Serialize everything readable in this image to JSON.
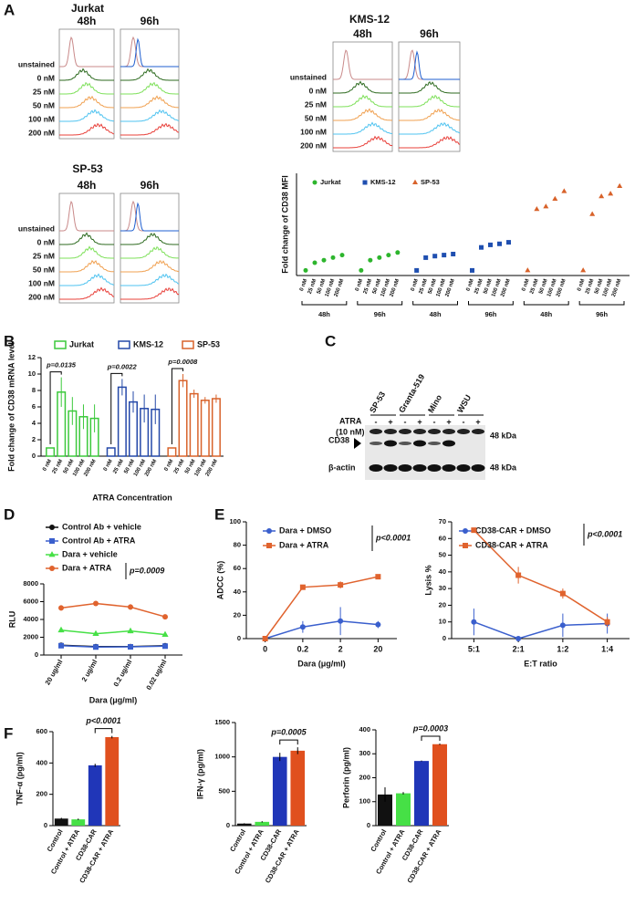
{
  "chart_data": [
    {
      "type": "flow",
      "panel": "A",
      "row_labels": [
        "unstained",
        "0 nM",
        "25 nM",
        "50 nM",
        "100 nM",
        "200 nM"
      ],
      "row_colors": [
        "#c98a8a",
        "#2d6a1f",
        "#7ee05a",
        "#f0a050",
        "#4fc3f0",
        "#e8403a"
      ],
      "blocks": [
        {
          "title": "Jurkat",
          "timepoints": [
            "48h",
            "96h"
          ]
        },
        {
          "title": "KMS-12",
          "timepoints": [
            "48h",
            "96h"
          ]
        },
        {
          "title": "SP-53",
          "timepoints": [
            "48h",
            "96h"
          ]
        }
      ]
    },
    {
      "type": "dot",
      "ylabel": "Fold change of CD38 MFI",
      "dose_labels": [
        "0 nM",
        "25 nM",
        "50 nM",
        "100 nM",
        "200 nM"
      ],
      "ylim": [
        0,
        20
      ],
      "series": [
        {
          "name": "Jurkat",
          "color": "#2db52d",
          "marker": "circle",
          "groups": [
            {
              "name": "48h",
              "values": [
                1,
                2.5,
                3,
                3.5,
                4
              ]
            },
            {
              "name": "96h",
              "values": [
                1,
                3,
                3.5,
                4,
                4.5
              ]
            }
          ]
        },
        {
          "name": "KMS-12",
          "color": "#1f4fb0",
          "marker": "square",
          "groups": [
            {
              "name": "48h",
              "values": [
                1,
                3.5,
                3.8,
                4,
                4.2
              ]
            },
            {
              "name": "96h",
              "values": [
                1,
                5.5,
                6,
                6.2,
                6.5
              ]
            }
          ]
        },
        {
          "name": "SP-53",
          "color": "#d8622a",
          "marker": "triangle",
          "groups": [
            {
              "name": "48h",
              "values": [
                1,
                13,
                13.5,
                15,
                16.5
              ]
            },
            {
              "name": "96h",
              "values": [
                1,
                12,
                15.5,
                16,
                17.5
              ]
            }
          ]
        }
      ]
    },
    {
      "type": "bar_groups",
      "panel": "B",
      "ylabel": "Fold change of CD38 mRNA level",
      "xlabel": "ATRA Concentration",
      "ylim": [
        0,
        12
      ],
      "yticks": [
        0,
        2,
        4,
        6,
        8,
        10,
        12
      ],
      "categories": [
        "0 nM",
        "25 nM",
        "50 nM",
        "100 nM",
        "200 nM"
      ],
      "series": [
        {
          "name": "Jurkat",
          "color": "#3cc93c",
          "values": [
            1,
            7.8,
            5.5,
            4.8,
            4.6
          ],
          "errors": [
            0.05,
            1.8,
            1.7,
            1.5,
            1.7
          ],
          "p_label": "p=0.0135"
        },
        {
          "name": "KMS-12",
          "color": "#2448a8",
          "values": [
            1,
            8.4,
            6.6,
            5.8,
            5.7
          ],
          "errors": [
            0.05,
            1,
            1.3,
            1.7,
            1.8
          ],
          "p_label": "p=0.0022"
        },
        {
          "name": "SP-53",
          "color": "#d8622a",
          "values": [
            1,
            9.2,
            7.6,
            6.8,
            7
          ],
          "errors": [
            0.05,
            0.8,
            0.5,
            0.4,
            0.5
          ],
          "p_label": "p=0.0008"
        }
      ]
    },
    {
      "type": "blot",
      "panel": "C",
      "lanes": [
        "SP-53",
        "Granta-519",
        "Mino",
        "WSU"
      ],
      "treatment": "ATRA",
      "treatment_dose": "(10 nM)",
      "signs": [
        "-",
        "+"
      ],
      "bands": [
        {
          "name": "CD38",
          "size": "48 kDa"
        },
        {
          "name": "β-actin",
          "size": "48 kDa"
        }
      ]
    },
    {
      "type": "line",
      "panel": "D",
      "ylabel": "RLU",
      "xlabel": "Dara (μg/ml)",
      "categories": [
        "20 ug/ml",
        "2 ug/ml",
        "0.2 ug/ml",
        "0.02 ug/ml"
      ],
      "ylim": [
        0,
        8000
      ],
      "yticks": [
        0,
        2000,
        4000,
        6000,
        8000
      ],
      "annotation": "p=0.0009",
      "series": [
        {
          "name": "Control Ab + vehicle",
          "color": "#111111",
          "marker": "circle",
          "values": [
            1100,
            950,
            950,
            1050
          ],
          "errors": [
            100,
            80,
            60,
            50
          ]
        },
        {
          "name": "Control Ab + ATRA",
          "color": "#3a5fcd",
          "marker": "square",
          "values": [
            1050,
            900,
            920,
            1000
          ],
          "errors": [
            80,
            60,
            60,
            50
          ]
        },
        {
          "name": "Dara + vehicle",
          "color": "#46e046",
          "marker": "triangle",
          "values": [
            2800,
            2400,
            2700,
            2300
          ],
          "errors": [
            250,
            150,
            250,
            200
          ]
        },
        {
          "name": "Dara + ATRA",
          "color": "#e0632e",
          "marker": "circle",
          "values": [
            5300,
            5800,
            5400,
            4300
          ],
          "errors": [
            300,
            100,
            300,
            200
          ]
        }
      ]
    },
    {
      "type": "line",
      "panel": "E",
      "ylabel": "ADCC (%)",
      "xlabel": "Dara (μg/ml)",
      "categories": [
        "0",
        "0.2",
        "2",
        "20"
      ],
      "ylim": [
        0,
        100
      ],
      "yticks": [
        0,
        20,
        40,
        60,
        80,
        100
      ],
      "annotation": "p<0.0001",
      "series": [
        {
          "name": "Dara + DMSO",
          "color": "#3a5fcd",
          "marker": "circle",
          "values": [
            0,
            10,
            15,
            12
          ],
          "errors": [
            0,
            5,
            12,
            3
          ]
        },
        {
          "name": "Dara + ATRA",
          "color": "#e0632e",
          "marker": "square",
          "values": [
            0,
            44,
            46,
            53
          ],
          "errors": [
            0,
            2,
            3,
            1
          ]
        }
      ]
    },
    {
      "type": "line",
      "ylabel": "Lysis %",
      "xlabel": "E:T ratio",
      "categories": [
        "5:1",
        "2:1",
        "1:2",
        "1:4"
      ],
      "ylim": [
        0,
        70
      ],
      "yticks": [
        0,
        10,
        20,
        30,
        40,
        50,
        60,
        70
      ],
      "annotation": "p<0.0001",
      "series": [
        {
          "name": "CD38-CAR + DMSO",
          "color": "#3a5fcd",
          "marker": "circle",
          "values": [
            10,
            0,
            8,
            9
          ],
          "errors": [
            8,
            0,
            7,
            6
          ]
        },
        {
          "name": "CD38-CAR + ATRA",
          "color": "#e0632e",
          "marker": "square",
          "values": [
            65,
            38,
            27,
            10
          ],
          "errors": [
            1,
            5,
            3,
            3
          ]
        }
      ]
    },
    {
      "type": "bar",
      "panel": "F",
      "ylabel": "TNF-α (pg/ml)",
      "categories": [
        "Control",
        "Control + ATRA",
        "CD38-CAR",
        "CD38-CAR + ATRA"
      ],
      "colors": [
        "#111111",
        "#46e046",
        "#2036b8",
        "#e0501e"
      ],
      "values": [
        45,
        40,
        385,
        565
      ],
      "errors": [
        5,
        5,
        10,
        8
      ],
      "ylim": [
        0,
        600
      ],
      "yticks": [
        0,
        200,
        400,
        600
      ],
      "annotation": "p<0.0001"
    },
    {
      "type": "bar",
      "ylabel": "IFN-γ (pg/ml)",
      "categories": [
        "Control",
        "Control + ATRA",
        "CD38-CAR",
        "CD38-CAR + ATRA"
      ],
      "colors": [
        "#111111",
        "#46e046",
        "#2036b8",
        "#e0501e"
      ],
      "values": [
        30,
        55,
        1000,
        1090
      ],
      "errors": [
        5,
        10,
        60,
        50
      ],
      "ylim": [
        0,
        1500
      ],
      "yticks": [
        0,
        500,
        1000,
        1500
      ],
      "annotation": "p=0.0005"
    },
    {
      "type": "bar",
      "ylabel": "Perforin (pg/ml)",
      "categories": [
        "Control",
        "Control + ATRA",
        "CD38-CAR",
        "CD38-CAR + ATRA"
      ],
      "colors": [
        "#111111",
        "#46e046",
        "#2036b8",
        "#e0501e"
      ],
      "values": [
        130,
        135,
        270,
        340
      ],
      "errors": [
        30,
        5,
        2,
        3
      ],
      "ylim": [
        0,
        400
      ],
      "yticks": [
        0,
        100,
        200,
        300,
        400
      ],
      "annotation": "p=0.0003"
    }
  ]
}
